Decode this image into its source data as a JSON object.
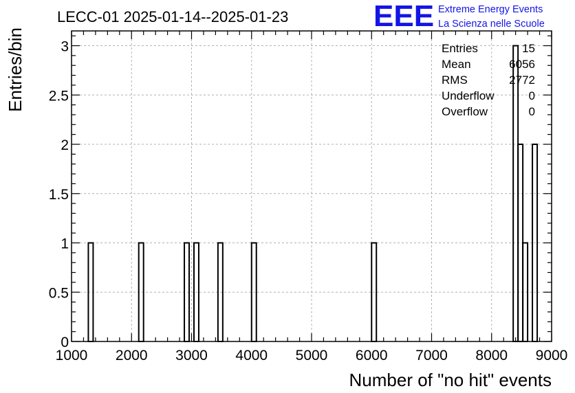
{
  "chart_data": {
    "type": "bar",
    "title": "LECC-01 2025-01-14--2025-01-23",
    "xlabel": "Number of \"no hit\" events",
    "ylabel": "Entries/bin",
    "xlim": [
      1000,
      9000
    ],
    "ylim": [
      0,
      3.15
    ],
    "grid": true,
    "x_ticks": [
      1000,
      2000,
      3000,
      4000,
      5000,
      6000,
      7000,
      8000,
      9000
    ],
    "y_ticks": [
      0,
      0.5,
      1,
      1.5,
      2,
      2.5,
      3
    ],
    "y_tick_labels": [
      "0",
      "0.5",
      "1",
      "1.5",
      "2",
      "2.5",
      "3"
    ],
    "bin_width": 80,
    "bins": [
      {
        "x_low": 1280,
        "value": 1
      },
      {
        "x_low": 2120,
        "value": 1
      },
      {
        "x_low": 2880,
        "value": 1
      },
      {
        "x_low": 3040,
        "value": 1
      },
      {
        "x_low": 3440,
        "value": 1
      },
      {
        "x_low": 4000,
        "value": 1
      },
      {
        "x_low": 6000,
        "value": 1
      },
      {
        "x_low": 8360,
        "value": 3
      },
      {
        "x_low": 8440,
        "value": 2
      },
      {
        "x_low": 8520,
        "value": 1
      },
      {
        "x_low": 8680,
        "value": 2
      }
    ],
    "stats": [
      {
        "label": "Entries",
        "value": "15"
      },
      {
        "label": "Mean",
        "value": "6056"
      },
      {
        "label": "RMS",
        "value": "2772"
      },
      {
        "label": "Underflow",
        "value": "0"
      },
      {
        "label": "Overflow",
        "value": "0"
      }
    ]
  },
  "logo": {
    "letters": "EEE",
    "line1": "Extreme Energy Events",
    "line2": "La Scienza nelle Scuole",
    "color": "#1414e6"
  }
}
